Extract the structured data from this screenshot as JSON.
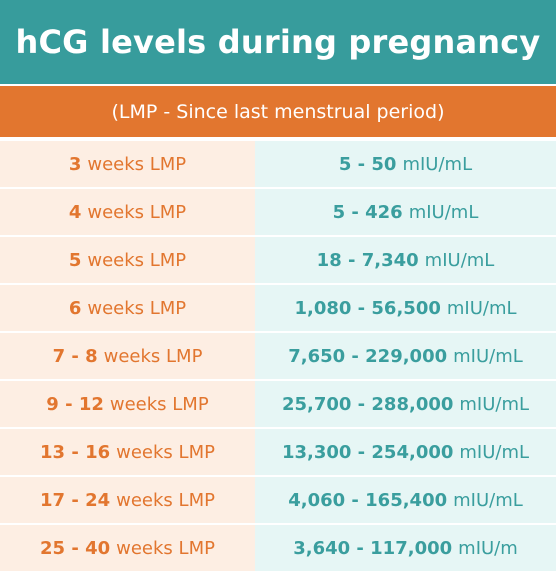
{
  "header": {
    "title": "hCG levels during pregnancy",
    "subtitle": "(LMP - Since last menstrual period)"
  },
  "colors": {
    "title_bg": "#379c9c",
    "subtitle_bg": "#e2762f",
    "week_text": "#e2762f",
    "week_bg": "#fdeee3",
    "level_text": "#3a9e9e",
    "level_bg": "#e6f6f5"
  },
  "rows": [
    {
      "week_range": "3",
      "week_unit": "weeks LMP",
      "level_range": "5 - 50",
      "level_unit": "mIU/mL"
    },
    {
      "week_range": "4",
      "week_unit": "weeks LMP",
      "level_range": "5 - 426",
      "level_unit": "mIU/mL"
    },
    {
      "week_range": "5",
      "week_unit": "weeks LMP",
      "level_range": "18 - 7,340",
      "level_unit": "mIU/mL"
    },
    {
      "week_range": "6",
      "week_unit": "weeks LMP",
      "level_range": "1,080 - 56,500",
      "level_unit": "mIU/mL"
    },
    {
      "week_range": "7 - 8",
      "week_unit": "weeks LMP",
      "level_range": "7,650 - 229,000",
      "level_unit": "mIU/mL"
    },
    {
      "week_range": "9 - 12",
      "week_unit": "weeks LMP",
      "level_range": "25,700 - 288,000",
      "level_unit": "mIU/mL"
    },
    {
      "week_range": "13 - 16",
      "week_unit": "weeks LMP",
      "level_range": "13,300 - 254,000",
      "level_unit": "mIU/mL"
    },
    {
      "week_range": "17 - 24",
      "week_unit": "weeks LMP",
      "level_range": "4,060 - 165,400",
      "level_unit": "mIU/mL"
    },
    {
      "week_range": "25 - 40",
      "week_unit": "weeks LMP",
      "level_range": "3,640 - 117,000",
      "level_unit": "mIU/m"
    }
  ]
}
